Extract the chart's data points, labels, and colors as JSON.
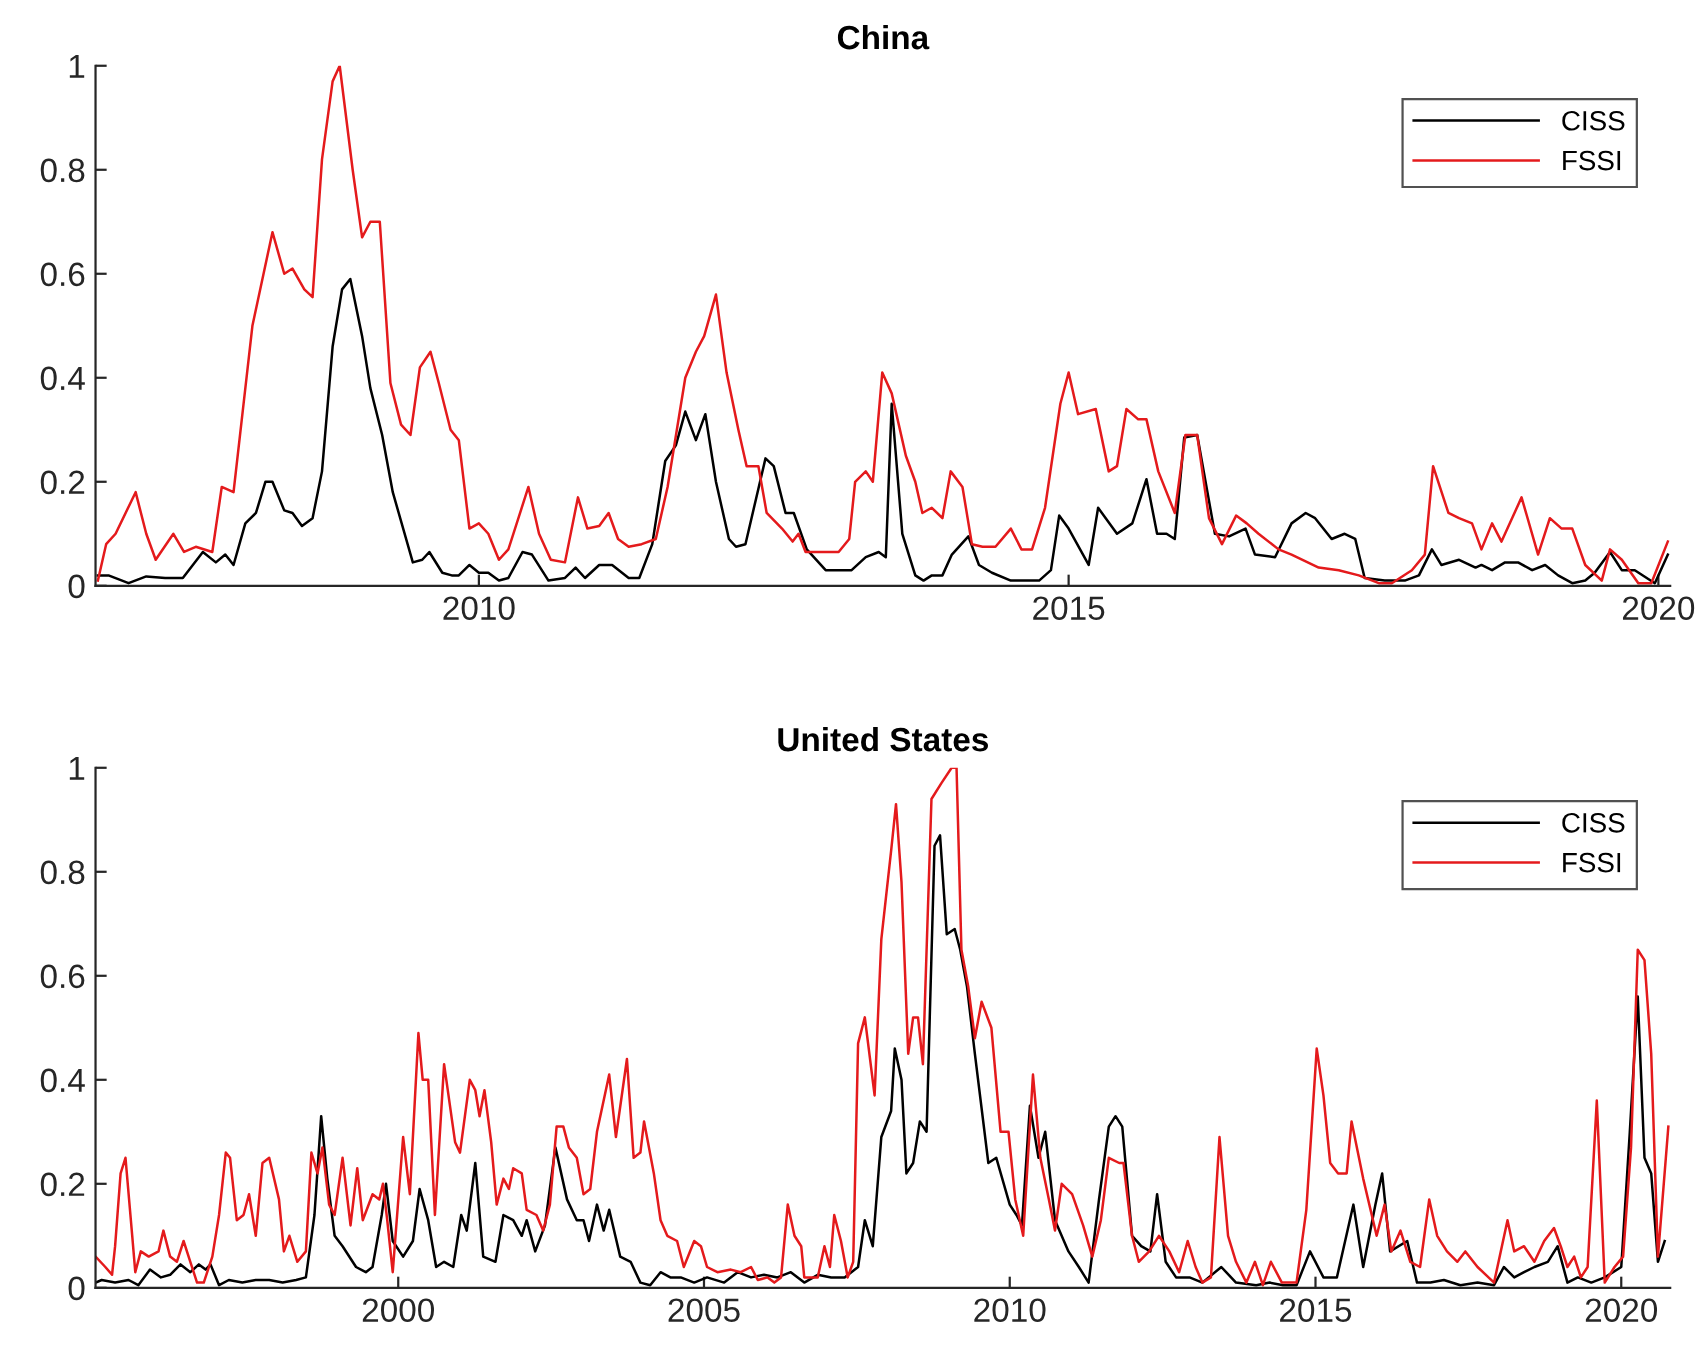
{
  "chart_data": [
    {
      "type": "line",
      "title": "China",
      "xlim": [
        2006.75,
        2020.1
      ],
      "xticks": [
        2010,
        2015,
        2020
      ],
      "ylim": [
        0,
        1
      ],
      "yticks": [
        0,
        0.2,
        0.4,
        0.6,
        0.8,
        1
      ],
      "grid": false,
      "legend": "top right",
      "marker": "none",
      "line_style": "solid",
      "series": [
        {
          "name": "CISS",
          "color": "#000000",
          "x": [
            2006.77,
            2006.86,
            2007.03,
            2007.18,
            2007.34,
            2007.49,
            2007.66,
            2007.77,
            2007.85,
            2007.92,
            2008.02,
            2008.11,
            2008.19,
            2008.25,
            2008.35,
            2008.42,
            2008.5,
            2008.59,
            2008.67,
            2008.76,
            2008.84,
            2008.91,
            2009.01,
            2009.08,
            2009.18,
            2009.27,
            2009.44,
            2009.52,
            2009.58,
            2009.69,
            2009.77,
            2009.83,
            2009.92,
            2010.0,
            2010.08,
            2010.17,
            2010.25,
            2010.37,
            2010.45,
            2010.59,
            2010.73,
            2010.82,
            2010.9,
            2011.02,
            2011.13,
            2011.27,
            2011.36,
            2011.47,
            2011.58,
            2011.67,
            2011.75,
            2011.84,
            2011.92,
            2012.01,
            2012.12,
            2012.18,
            2012.26,
            2012.43,
            2012.5,
            2012.6,
            2012.67,
            2012.78,
            2012.94,
            2013.05,
            2013.16,
            2013.28,
            2013.39,
            2013.45,
            2013.5,
            2013.59,
            2013.7,
            2013.77,
            2013.84,
            2013.93,
            2014.01,
            2014.15,
            2014.24,
            2014.35,
            2014.51,
            2014.75,
            2014.85,
            2014.92,
            2015.0,
            2015.17,
            2015.25,
            2015.41,
            2015.54,
            2015.66,
            2015.75,
            2015.83,
            2015.9,
            2015.98,
            2016.09,
            2016.24,
            2016.36,
            2016.5,
            2016.58,
            2016.75,
            2016.89,
            2017.01,
            2017.09,
            2017.23,
            2017.34,
            2017.43,
            2017.51,
            2017.68,
            2017.85,
            2017.97,
            2018.08,
            2018.16,
            2018.31,
            2018.45,
            2018.5,
            2018.59,
            2018.7,
            2018.81,
            2018.93,
            2019.04,
            2019.15,
            2019.27,
            2019.38,
            2019.46,
            2019.59,
            2019.69,
            2019.8,
            2019.97,
            2020.08
          ],
          "values": [
            0.02,
            0.02,
            0.005,
            0.018,
            0.015,
            0.015,
            0.065,
            0.045,
            0.06,
            0.04,
            0.12,
            0.14,
            0.2,
            0.2,
            0.145,
            0.14,
            0.115,
            0.13,
            0.22,
            0.46,
            0.57,
            0.59,
            0.48,
            0.38,
            0.29,
            0.18,
            0.045,
            0.05,
            0.065,
            0.025,
            0.02,
            0.02,
            0.04,
            0.025,
            0.025,
            0.01,
            0.015,
            0.065,
            0.06,
            0.01,
            0.015,
            0.035,
            0.015,
            0.04,
            0.04,
            0.015,
            0.015,
            0.08,
            0.24,
            0.27,
            0.335,
            0.28,
            0.33,
            0.2,
            0.09,
            0.075,
            0.08,
            0.245,
            0.23,
            0.14,
            0.14,
            0.07,
            0.03,
            0.03,
            0.03,
            0.055,
            0.065,
            0.055,
            0.35,
            0.1,
            0.02,
            0.01,
            0.02,
            0.02,
            0.06,
            0.095,
            0.04,
            0.025,
            0.01,
            0.01,
            0.03,
            0.135,
            0.11,
            0.04,
            0.15,
            0.1,
            0.12,
            0.205,
            0.1,
            0.1,
            0.09,
            0.285,
            0.29,
            0.1,
            0.095,
            0.11,
            0.06,
            0.055,
            0.12,
            0.14,
            0.13,
            0.09,
            0.1,
            0.09,
            0.015,
            0.01,
            0.01,
            0.02,
            0.07,
            0.04,
            0.05,
            0.035,
            0.04,
            0.03,
            0.045,
            0.045,
            0.03,
            0.04,
            0.02,
            0.005,
            0.01,
            0.025,
            0.065,
            0.03,
            0.03,
            0.005,
            0.06
          ]
        },
        {
          "name": "FSSI",
          "color": "#e41a1c",
          "x": [
            2006.77,
            2006.84,
            2006.92,
            2007.09,
            2007.18,
            2007.26,
            2007.41,
            2007.5,
            2007.6,
            2007.74,
            2007.82,
            2007.92,
            2008.08,
            2008.25,
            2008.35,
            2008.42,
            2008.52,
            2008.59,
            2008.67,
            2008.76,
            2008.82,
            2008.93,
            2009.01,
            2009.08,
            2009.16,
            2009.25,
            2009.34,
            2009.42,
            2009.5,
            2009.59,
            2009.66,
            2009.76,
            2009.83,
            2009.92,
            2010.0,
            2010.08,
            2010.17,
            2010.25,
            2010.42,
            2010.51,
            2010.61,
            2010.73,
            2010.84,
            2010.92,
            2011.02,
            2011.1,
            2011.18,
            2011.27,
            2011.38,
            2011.5,
            2011.6,
            2011.75,
            2011.84,
            2011.91,
            2012.01,
            2012.1,
            2012.2,
            2012.27,
            2012.37,
            2012.44,
            2012.57,
            2012.66,
            2012.71,
            2012.77,
            2012.94,
            2013.05,
            2013.14,
            2013.19,
            2013.28,
            2013.34,
            2013.42,
            2013.5,
            2013.62,
            2013.7,
            2013.76,
            2013.84,
            2013.93,
            2014.0,
            2014.1,
            2014.18,
            2014.27,
            2014.38,
            2014.51,
            2014.6,
            2014.69,
            2014.8,
            2014.93,
            2015.0,
            2015.08,
            2015.23,
            2015.34,
            2015.41,
            2015.49,
            2015.59,
            2015.66,
            2015.76,
            2015.9,
            2015.99,
            2016.09,
            2016.19,
            2016.3,
            2016.42,
            2016.51,
            2016.61,
            2016.78,
            2016.89,
            2017.12,
            2017.29,
            2017.46,
            2017.63,
            2017.74,
            2017.91,
            2018.02,
            2018.09,
            2018.22,
            2018.31,
            2018.42,
            2018.5,
            2018.59,
            2018.67,
            2018.84,
            2018.98,
            2019.08,
            2019.18,
            2019.27,
            2019.38,
            2019.52,
            2019.59,
            2019.69,
            2019.83,
            2019.94,
            2020.08
          ],
          "values": [
            0.01,
            0.08,
            0.1,
            0.18,
            0.1,
            0.05,
            0.1,
            0.065,
            0.075,
            0.065,
            0.19,
            0.18,
            0.5,
            0.68,
            0.6,
            0.61,
            0.57,
            0.555,
            0.82,
            0.97,
            1.0,
            0.8,
            0.67,
            0.7,
            0.7,
            0.39,
            0.31,
            0.29,
            0.42,
            0.45,
            0.39,
            0.3,
            0.28,
            0.11,
            0.12,
            0.1,
            0.05,
            0.07,
            0.19,
            0.1,
            0.05,
            0.045,
            0.17,
            0.11,
            0.115,
            0.14,
            0.09,
            0.075,
            0.08,
            0.09,
            0.19,
            0.4,
            0.45,
            0.48,
            0.56,
            0.41,
            0.3,
            0.23,
            0.23,
            0.14,
            0.11,
            0.085,
            0.1,
            0.065,
            0.065,
            0.065,
            0.09,
            0.2,
            0.22,
            0.2,
            0.41,
            0.37,
            0.25,
            0.2,
            0.14,
            0.15,
            0.13,
            0.22,
            0.19,
            0.08,
            0.075,
            0.075,
            0.11,
            0.07,
            0.07,
            0.15,
            0.35,
            0.41,
            0.33,
            0.34,
            0.22,
            0.23,
            0.34,
            0.32,
            0.32,
            0.22,
            0.14,
            0.29,
            0.29,
            0.13,
            0.08,
            0.135,
            0.12,
            0.1,
            0.07,
            0.06,
            0.035,
            0.03,
            0.02,
            0.005,
            0.005,
            0.03,
            0.06,
            0.23,
            0.14,
            0.13,
            0.12,
            0.07,
            0.12,
            0.085,
            0.17,
            0.06,
            0.13,
            0.11,
            0.11,
            0.04,
            0.01,
            0.07,
            0.05,
            0.005,
            0.005,
            0.085
          ]
        }
      ]
    },
    {
      "type": "line",
      "title": "United States",
      "xlim": [
        1995.05,
        2020.8
      ],
      "xticks": [
        2000,
        2005,
        2010,
        2015,
        2020
      ],
      "ylim": [
        0,
        1
      ],
      "yticks": [
        0,
        0.2,
        0.4,
        0.6,
        0.8,
        1
      ],
      "grid": false,
      "legend": "top right",
      "marker": "none",
      "line_style": "solid",
      "series": [
        {
          "name": "CISS",
          "color": "#000000",
          "x": [
            1995.05,
            1995.15,
            1995.37,
            1995.59,
            1995.75,
            1995.94,
            1996.12,
            1996.27,
            1996.44,
            1996.6,
            1996.74,
            1996.85,
            1996.93,
            1997.07,
            1997.23,
            1997.45,
            1997.67,
            1997.89,
            1998.11,
            1998.33,
            1998.49,
            1998.63,
            1998.74,
            1998.84,
            1998.96,
            1999.09,
            1999.31,
            1999.47,
            1999.58,
            1999.73,
            1999.8,
            1999.91,
            2000.08,
            2000.24,
            2000.35,
            2000.49,
            2000.62,
            2000.75,
            2000.9,
            2001.03,
            2001.12,
            2001.26,
            2001.39,
            2001.59,
            2001.72,
            2001.88,
            2002.02,
            2002.1,
            2002.24,
            2002.4,
            2002.57,
            2002.76,
            2002.92,
            2003.03,
            2003.12,
            2003.25,
            2003.36,
            2003.45,
            2003.63,
            2003.8,
            2003.96,
            2004.12,
            2004.29,
            2004.45,
            2004.62,
            2004.84,
            2005.05,
            2005.33,
            2005.55,
            2005.77,
            2005.98,
            2006.2,
            2006.42,
            2006.64,
            2006.86,
            2007.08,
            2007.3,
            2007.52,
            2007.63,
            2007.76,
            2007.9,
            2008.06,
            2008.12,
            2008.23,
            2008.31,
            2008.42,
            2008.53,
            2008.64,
            2008.77,
            2008.86,
            2008.97,
            2009.1,
            2009.19,
            2009.3,
            2009.43,
            2009.65,
            2009.78,
            2010.0,
            2010.11,
            2010.2,
            2010.33,
            2010.47,
            2010.58,
            2010.74,
            2010.96,
            2011.13,
            2011.29,
            2011.46,
            2011.62,
            2011.73,
            2011.84,
            2012.0,
            2012.15,
            2012.3,
            2012.41,
            2012.55,
            2012.72,
            2012.94,
            2013.15,
            2013.46,
            2013.7,
            2014.03,
            2014.25,
            2014.47,
            2014.69,
            2014.91,
            2015.13,
            2015.35,
            2015.62,
            2015.78,
            2015.98,
            2016.09,
            2016.22,
            2016.5,
            2016.66,
            2016.88,
            2017.1,
            2017.37,
            2017.65,
            2017.92,
            2018.08,
            2018.25,
            2018.41,
            2018.58,
            2018.8,
            2018.96,
            2019.12,
            2019.29,
            2019.51,
            2019.73,
            2020.0,
            2020.14,
            2020.27,
            2020.38,
            2020.49,
            2020.6,
            2020.71
          ],
          "values": [
            0.01,
            0.015,
            0.01,
            0.015,
            0.005,
            0.035,
            0.02,
            0.025,
            0.045,
            0.03,
            0.045,
            0.035,
            0.045,
            0.005,
            0.015,
            0.01,
            0.015,
            0.015,
            0.01,
            0.015,
            0.02,
            0.14,
            0.33,
            0.21,
            0.1,
            0.08,
            0.04,
            0.03,
            0.04,
            0.14,
            0.2,
            0.09,
            0.06,
            0.09,
            0.19,
            0.13,
            0.04,
            0.05,
            0.04,
            0.14,
            0.11,
            0.24,
            0.06,
            0.05,
            0.14,
            0.13,
            0.1,
            0.13,
            0.07,
            0.12,
            0.27,
            0.17,
            0.13,
            0.13,
            0.09,
            0.16,
            0.11,
            0.15,
            0.06,
            0.05,
            0.01,
            0.005,
            0.03,
            0.02,
            0.02,
            0.01,
            0.02,
            0.01,
            0.03,
            0.02,
            0.025,
            0.02,
            0.03,
            0.01,
            0.025,
            0.02,
            0.02,
            0.04,
            0.13,
            0.08,
            0.29,
            0.34,
            0.46,
            0.4,
            0.22,
            0.24,
            0.32,
            0.3,
            0.85,
            0.87,
            0.68,
            0.69,
            0.65,
            0.58,
            0.45,
            0.24,
            0.25,
            0.16,
            0.14,
            0.12,
            0.35,
            0.25,
            0.3,
            0.13,
            0.07,
            0.04,
            0.01,
            0.17,
            0.31,
            0.33,
            0.31,
            0.1,
            0.08,
            0.07,
            0.18,
            0.05,
            0.02,
            0.02,
            0.01,
            0.04,
            0.01,
            0.005,
            0.01,
            0.005,
            0.005,
            0.07,
            0.02,
            0.02,
            0.16,
            0.04,
            0.16,
            0.22,
            0.07,
            0.09,
            0.01,
            0.01,
            0.015,
            0.005,
            0.01,
            0.005,
            0.04,
            0.02,
            0.03,
            0.04,
            0.05,
            0.08,
            0.01,
            0.02,
            0.01,
            0.02,
            0.04,
            0.3,
            0.56,
            0.25,
            0.22,
            0.05,
            0.09
          ]
        },
        {
          "name": "FSSI",
          "color": "#e41a1c",
          "x": [
            1995.05,
            1995.21,
            1995.32,
            1995.37,
            1995.46,
            1995.54,
            1995.65,
            1995.7,
            1995.79,
            1995.92,
            1996.08,
            1996.16,
            1996.27,
            1996.38,
            1996.49,
            1996.6,
            1996.71,
            1996.82,
            1996.96,
            1997.07,
            1997.18,
            1997.25,
            1997.36,
            1997.47,
            1997.56,
            1997.67,
            1997.78,
            1997.89,
            1998.05,
            1998.13,
            1998.22,
            1998.35,
            1998.49,
            1998.58,
            1998.68,
            1998.76,
            1998.87,
            1998.96,
            1999.09,
            1999.22,
            1999.33,
            1999.42,
            1999.58,
            1999.69,
            1999.75,
            1999.82,
            1999.91,
            2000.08,
            2000.19,
            2000.33,
            2000.4,
            2000.49,
            2000.6,
            2000.75,
            2000.93,
            2001.01,
            2001.17,
            2001.26,
            2001.33,
            2001.41,
            2001.52,
            2001.61,
            2001.72,
            2001.81,
            2001.88,
            2002.02,
            2002.1,
            2002.26,
            2002.37,
            2002.48,
            2002.59,
            2002.7,
            2002.79,
            2002.92,
            2003.03,
            2003.14,
            2003.25,
            2003.45,
            2003.56,
            2003.74,
            2003.85,
            2003.96,
            2004.02,
            2004.18,
            2004.29,
            2004.4,
            2004.56,
            2004.67,
            2004.84,
            2004.95,
            2005.05,
            2005.22,
            2005.44,
            2005.6,
            2005.77,
            2005.88,
            2006.04,
            2006.15,
            2006.26,
            2006.37,
            2006.48,
            2006.59,
            2006.64,
            2006.86,
            2006.97,
            2007.06,
            2007.13,
            2007.24,
            2007.35,
            2007.44,
            2007.52,
            2007.63,
            2007.79,
            2007.9,
            2008.06,
            2008.14,
            2008.23,
            2008.34,
            2008.42,
            2008.5,
            2008.58,
            2008.72,
            2008.88,
            2009.05,
            2009.13,
            2009.21,
            2009.32,
            2009.43,
            2009.54,
            2009.7,
            2009.85,
            2009.98,
            2010.09,
            2010.22,
            2010.38,
            2010.5,
            2010.64,
            2010.74,
            2010.85,
            2011.02,
            2011.2,
            2011.35,
            2011.49,
            2011.62,
            2011.79,
            2011.86,
            2012.0,
            2012.11,
            2012.28,
            2012.44,
            2012.61,
            2012.77,
            2012.91,
            2013.04,
            2013.15,
            2013.29,
            2013.43,
            2013.57,
            2013.7,
            2013.87,
            2014.01,
            2014.14,
            2014.27,
            2014.45,
            2014.69,
            2014.85,
            2015.02,
            2015.13,
            2015.24,
            2015.37,
            2015.51,
            2015.59,
            2015.78,
            2016.0,
            2016.13,
            2016.24,
            2016.39,
            2016.55,
            2016.71,
            2016.86,
            2016.99,
            2017.15,
            2017.32,
            2017.45,
            2017.65,
            2017.92,
            2018.14,
            2018.25,
            2018.41,
            2018.58,
            2018.74,
            2018.9,
            2019.01,
            2019.12,
            2019.23,
            2019.34,
            2019.45,
            2019.6,
            2019.73,
            2019.89,
            2020.03,
            2020.16,
            2020.27,
            2020.38,
            2020.49,
            2020.6,
            2020.77
          ],
          "values": [
            0.06,
            0.04,
            0.025,
            0.08,
            0.22,
            0.25,
            0.1,
            0.03,
            0.07,
            0.06,
            0.07,
            0.11,
            0.06,
            0.05,
            0.09,
            0.05,
            0.01,
            0.01,
            0.06,
            0.14,
            0.26,
            0.25,
            0.13,
            0.14,
            0.18,
            0.1,
            0.24,
            0.25,
            0.17,
            0.07,
            0.1,
            0.05,
            0.07,
            0.26,
            0.22,
            0.27,
            0.16,
            0.14,
            0.25,
            0.12,
            0.23,
            0.13,
            0.18,
            0.17,
            0.2,
            0.13,
            0.03,
            0.29,
            0.18,
            0.49,
            0.4,
            0.4,
            0.14,
            0.43,
            0.28,
            0.26,
            0.4,
            0.38,
            0.33,
            0.38,
            0.28,
            0.16,
            0.21,
            0.19,
            0.23,
            0.22,
            0.15,
            0.14,
            0.11,
            0.16,
            0.31,
            0.31,
            0.27,
            0.25,
            0.18,
            0.19,
            0.3,
            0.41,
            0.29,
            0.44,
            0.25,
            0.26,
            0.32,
            0.22,
            0.13,
            0.1,
            0.09,
            0.04,
            0.09,
            0.08,
            0.04,
            0.03,
            0.035,
            0.03,
            0.04,
            0.015,
            0.02,
            0.01,
            0.02,
            0.16,
            0.1,
            0.08,
            0.02,
            0.02,
            0.08,
            0.04,
            0.14,
            0.09,
            0.02,
            0.05,
            0.47,
            0.52,
            0.37,
            0.67,
            0.84,
            0.93,
            0.78,
            0.45,
            0.52,
            0.52,
            0.43,
            0.94,
            0.97,
            1.0,
            1.0,
            0.65,
            0.58,
            0.48,
            0.55,
            0.5,
            0.3,
            0.3,
            0.17,
            0.1,
            0.41,
            0.25,
            0.17,
            0.11,
            0.2,
            0.18,
            0.12,
            0.06,
            0.13,
            0.25,
            0.24,
            0.24,
            0.1,
            0.05,
            0.07,
            0.1,
            0.07,
            0.03,
            0.09,
            0.04,
            0.01,
            0.02,
            0.29,
            0.1,
            0.05,
            0.01,
            0.05,
            0.005,
            0.05,
            0.01,
            0.01,
            0.15,
            0.46,
            0.37,
            0.24,
            0.22,
            0.22,
            0.32,
            0.21,
            0.1,
            0.16,
            0.07,
            0.11,
            0.05,
            0.04,
            0.17,
            0.1,
            0.07,
            0.05,
            0.07,
            0.04,
            0.01,
            0.13,
            0.07,
            0.08,
            0.05,
            0.09,
            0.115,
            0.08,
            0.04,
            0.06,
            0.02,
            0.04,
            0.36,
            0.01,
            0.04,
            0.06,
            0.27,
            0.65,
            0.63,
            0.45,
            0.06,
            0.31
          ]
        }
      ]
    }
  ]
}
